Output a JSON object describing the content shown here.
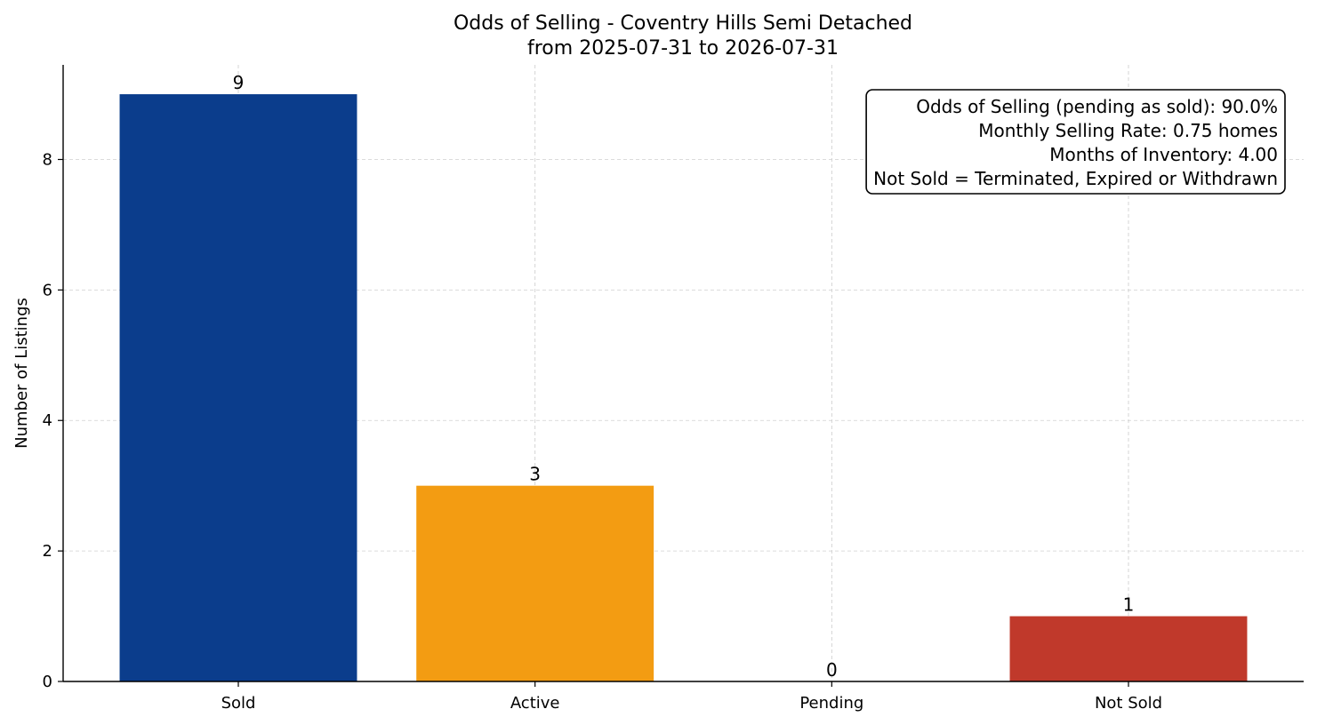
{
  "chart_data": {
    "type": "bar",
    "title": "Odds of Selling - Coventry Hills Semi Detached",
    "subtitle": "from 2025-07-31 to 2026-07-31",
    "xlabel": "",
    "ylabel": "Number of Listings",
    "categories": [
      "Sold",
      "Active",
      "Pending",
      "Not Sold"
    ],
    "values": [
      9,
      3,
      0,
      1
    ],
    "colors": [
      "#0b3d8c",
      "#f39c12",
      "#95a5a6",
      "#c0392b"
    ],
    "ylim": [
      0,
      9.45
    ],
    "yticks": [
      0,
      2,
      4,
      6,
      8
    ],
    "grid": true,
    "info_box": {
      "position": "top-right",
      "lines": [
        "Odds of Selling (pending as sold): 90.0%",
        "Monthly Selling Rate: 0.75 homes",
        "Months of Inventory: 4.00",
        "Not Sold = Terminated, Expired or Withdrawn"
      ]
    }
  }
}
